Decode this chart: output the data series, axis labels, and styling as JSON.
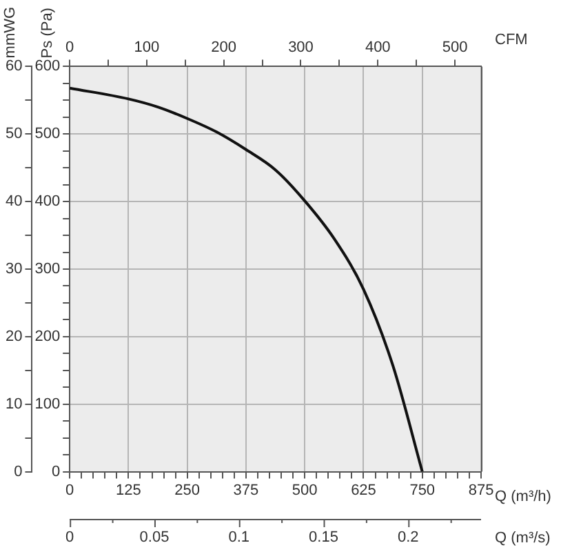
{
  "chart_data": {
    "type": "line",
    "xlabel": "Q (m³/h)",
    "ylabel": "Ps (Pa)",
    "x2label": "CFM",
    "y2label": "mmWG",
    "annotations": [
      "Q (m³/s)",
      "0",
      "0.05",
      "0.1",
      "0.15",
      "0.2"
    ],
    "x": [
      0,
      125,
      187.5,
      250,
      312.5,
      375,
      437.5,
      500,
      562.5,
      625,
      687.5,
      750
    ],
    "series": [
      {
        "color": "#111111",
        "values": [
          568,
          552,
          540,
          523,
          503,
          477,
          447,
          401,
          345,
          270,
          157,
          0
        ]
      }
    ],
    "xlim": [
      0,
      875
    ],
    "xticks": [
      0,
      {
        "value": 25,
        "label": null
      },
      {
        "value": 50,
        "label": null
      },
      {
        "value": 75,
        "label": null
      },
      {
        "value": 100,
        "label": null
      },
      125,
      {
        "value": 150,
        "label": null
      },
      {
        "value": 175,
        "label": null
      },
      {
        "value": 200,
        "label": null
      },
      {
        "value": 225,
        "label": null
      },
      250,
      {
        "value": 275,
        "label": null
      },
      {
        "value": 300,
        "label": null
      },
      {
        "value": 325,
        "label": null
      },
      {
        "value": 350,
        "label": null
      },
      375,
      {
        "value": 400,
        "label": null
      },
      {
        "value": 425,
        "label": null
      },
      {
        "value": 450,
        "label": null
      },
      {
        "value": 475,
        "label": null
      },
      500,
      {
        "value": 525,
        "label": null
      },
      {
        "value": 550,
        "label": null
      },
      {
        "value": 575,
        "label": null
      },
      {
        "value": 600,
        "label": null
      },
      625,
      {
        "value": 650,
        "label": null
      },
      {
        "value": 675,
        "label": null
      },
      {
        "value": 700,
        "label": null
      },
      {
        "value": 725,
        "label": null
      },
      750,
      {
        "value": 775,
        "label": null
      },
      {
        "value": 800,
        "label": null
      },
      {
        "value": 825,
        "label": null
      },
      {
        "value": 850,
        "label": null
      },
      875
    ],
    "ylim": [
      0,
      600
    ],
    "yticks": [
      0,
      {
        "value": 25,
        "label": null
      },
      {
        "value": 50,
        "label": null
      },
      {
        "value": 75,
        "label": null
      },
      100,
      {
        "value": 125,
        "label": null
      },
      {
        "value": 150,
        "label": null
      },
      {
        "value": 175,
        "label": null
      },
      200,
      {
        "value": 225,
        "label": null
      },
      {
        "value": 250,
        "label": null
      },
      {
        "value": 275,
        "label": null
      },
      300,
      {
        "value": 325,
        "label": null
      },
      {
        "value": 350,
        "label": null
      },
      {
        "value": 375,
        "label": null
      },
      400,
      {
        "value": 425,
        "label": null
      },
      {
        "value": 450,
        "label": null
      },
      {
        "value": 475,
        "label": null
      },
      500,
      {
        "value": 525,
        "label": null
      },
      {
        "value": 550,
        "label": null
      },
      {
        "value": 575,
        "label": null
      },
      600
    ],
    "x2lim": [
      0,
      534
    ],
    "x2ticks": [
      0,
      {
        "value": 50,
        "label": null
      },
      100,
      {
        "value": 150,
        "label": null
      },
      200,
      {
        "value": 250,
        "label": null
      },
      300,
      {
        "value": 350,
        "label": null
      },
      400,
      {
        "value": 450,
        "label": null
      },
      500
    ],
    "y2lim": [
      0,
      60
    ],
    "y2ticks": [
      0,
      {
        "value": 5,
        "label": null
      },
      10,
      {
        "value": 15,
        "label": null
      },
      20,
      {
        "value": 25,
        "label": null
      },
      30,
      {
        "value": 35,
        "label": null
      },
      40,
      {
        "value": 45,
        "label": null
      },
      50,
      {
        "value": 55,
        "label": null
      },
      60
    ],
    "grid": true,
    "legend": false,
    "marker": "none",
    "line_style": "solid"
  }
}
